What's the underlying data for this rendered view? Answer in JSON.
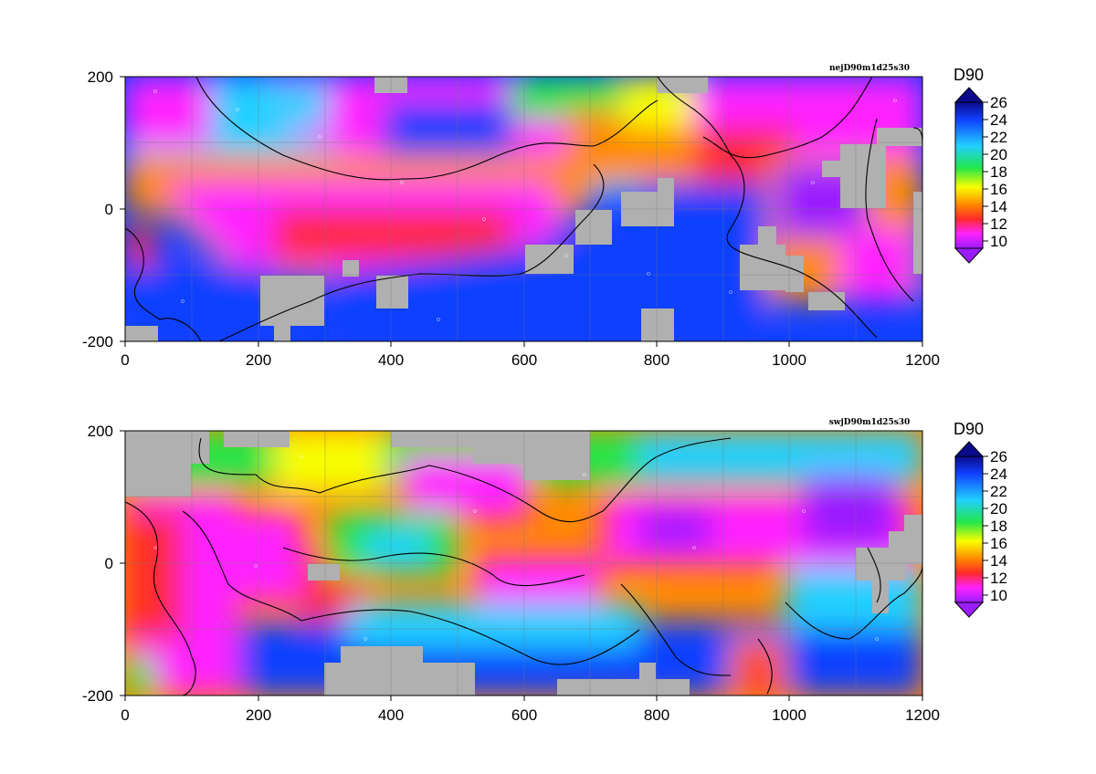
{
  "maps": [
    {
      "title": "nejD90m1d25s30",
      "x_ticks": [
        "0",
        "200",
        "400",
        "600",
        "800",
        "1000",
        "1200"
      ],
      "y_ticks": [
        "200",
        "0",
        "-200"
      ]
    },
    {
      "title": "swjD90m1d25s30",
      "x_ticks": [
        "0",
        "200",
        "400",
        "600",
        "800",
        "1000",
        "1200"
      ],
      "y_ticks": [
        "200",
        "0",
        "-200"
      ]
    }
  ],
  "colorbar": {
    "title": "D90",
    "ticks": [
      "26",
      "24",
      "22",
      "20",
      "18",
      "16",
      "14",
      "12",
      "10"
    ]
  },
  "colors": {
    "purple": "#9a1cff",
    "magenta": "#ff22ff",
    "red": "#ff2a2a",
    "orange": "#ff8a00",
    "yellow": "#f8ff00",
    "green": "#22e64a",
    "cyan": "#22d0ff",
    "blue": "#1040ff",
    "navy": "#0a0a8a",
    "nodata": "#b0b0b0"
  }
}
